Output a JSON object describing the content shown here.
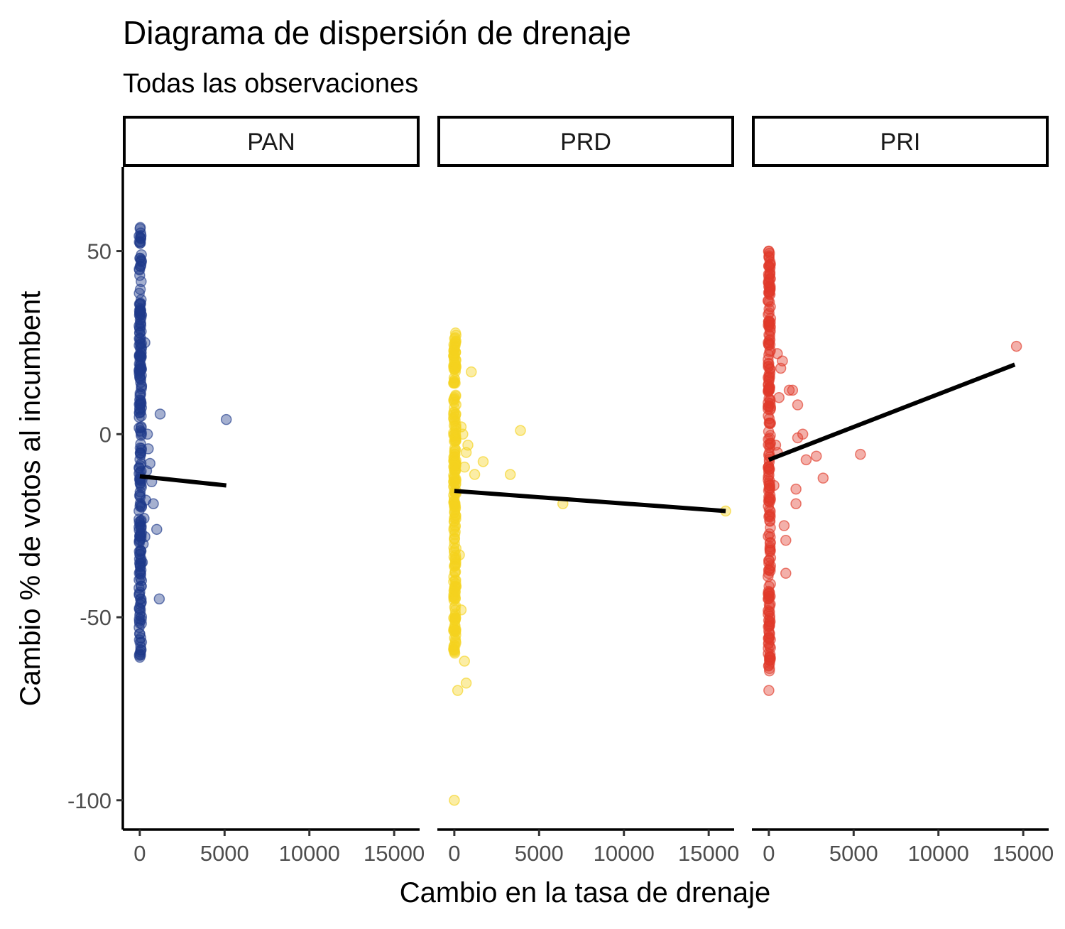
{
  "chart_data": {
    "type": "scatter",
    "title": "Diagrama de dispersión de drenaje",
    "subtitle": "Todas las observaciones",
    "xlabel": "Cambio en la tasa de drenaje",
    "ylabel": "Cambio % de votos al incumbent",
    "xlim": [
      -1000,
      16500
    ],
    "ylim": [
      -108,
      73
    ],
    "x_ticks": [
      0,
      5000,
      10000,
      15000
    ],
    "x_tick_labels": [
      "0",
      "5000",
      "10000",
      "15000"
    ],
    "y_ticks": [
      -100,
      -50,
      0,
      50
    ],
    "y_tick_labels": [
      "-100",
      "-50",
      "0",
      "50"
    ],
    "grid": false,
    "facets": [
      {
        "label": "PAN",
        "color": "#1f3a8a",
        "trend_line": {
          "x": [
            0,
            5100
          ],
          "y": [
            -11.5,
            -14
          ]
        },
        "points": [
          [
            5100,
            4
          ],
          [
            1200,
            5.5
          ],
          [
            1000,
            -26
          ],
          [
            1150,
            -45
          ],
          [
            800,
            -19
          ],
          [
            700,
            -13
          ],
          [
            600,
            -8
          ],
          [
            500,
            -4
          ],
          [
            450,
            0
          ],
          [
            300,
            25
          ],
          [
            400,
            -10
          ],
          [
            300,
            -28
          ],
          [
            250,
            -23
          ],
          [
            350,
            -18
          ],
          [
            200,
            -30
          ],
          [
            150,
            -35
          ],
          [
            100,
            -40
          ]
        ],
        "band_y": [
          -62,
          57
        ]
      },
      {
        "label": "PRD",
        "color": "#f5d31f",
        "trend_line": {
          "x": [
            0,
            16000
          ],
          "y": [
            -15.5,
            -21
          ]
        },
        "points": [
          [
            16000,
            -21
          ],
          [
            6400,
            -19
          ],
          [
            3900,
            1
          ],
          [
            3300,
            -11
          ],
          [
            1700,
            -7.5
          ],
          [
            1200,
            -11
          ],
          [
            1000,
            17
          ],
          [
            800,
            -3
          ],
          [
            700,
            -5
          ],
          [
            600,
            -9
          ],
          [
            500,
            0
          ],
          [
            400,
            2
          ],
          [
            0,
            -100
          ],
          [
            700,
            -68
          ],
          [
            600,
            -62
          ],
          [
            200,
            -70
          ],
          [
            400,
            -48
          ],
          [
            300,
            -33
          ]
        ],
        "band_y": [
          -60,
          28
        ]
      },
      {
        "label": "PRI",
        "color": "#e03a2a",
        "trend_line": {
          "x": [
            0,
            14500
          ],
          "y": [
            -7,
            19
          ]
        },
        "points": [
          [
            14600,
            24
          ],
          [
            5400,
            -5.5
          ],
          [
            3200,
            -12
          ],
          [
            2800,
            -6
          ],
          [
            2200,
            -7
          ],
          [
            2000,
            0
          ],
          [
            1700,
            8
          ],
          [
            1700,
            -1
          ],
          [
            1600,
            -15
          ],
          [
            1600,
            -19
          ],
          [
            1400,
            12
          ],
          [
            1200,
            12
          ],
          [
            1000,
            -29
          ],
          [
            1000,
            -38
          ],
          [
            900,
            -25
          ],
          [
            800,
            20
          ],
          [
            700,
            18
          ],
          [
            500,
            22
          ],
          [
            500,
            -5
          ],
          [
            400,
            -3
          ],
          [
            600,
            10
          ],
          [
            300,
            -14
          ],
          [
            0,
            -70
          ],
          [
            0,
            50
          ],
          [
            0,
            46
          ]
        ],
        "band_y": [
          -65,
          50
        ]
      }
    ]
  }
}
